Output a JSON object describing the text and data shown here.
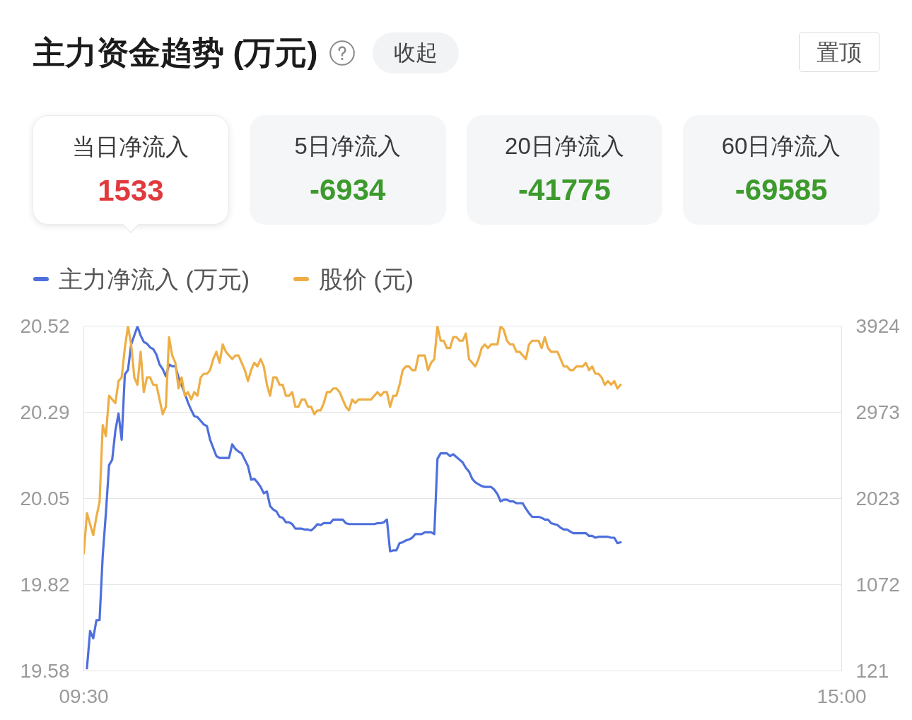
{
  "chart_data": [
    {
      "type": "other",
      "title": "主力资金趋势 (万元)",
      "annotations": [
        "收起",
        "置顶"
      ],
      "categories": [
        "当日净流入",
        "5日净流入",
        "20日净流入",
        "60日净流入"
      ],
      "values": [
        1533,
        -6934,
        -41775,
        -69585
      ],
      "data_labels": true
    },
    {
      "type": "line",
      "categories": [
        "09:30",
        null,
        null,
        null,
        null,
        null,
        null,
        null,
        null,
        null,
        null,
        null,
        null,
        null,
        null,
        null,
        null,
        null,
        null,
        null,
        null,
        null,
        null,
        null,
        null,
        null,
        null,
        null,
        null,
        null,
        null,
        null,
        null,
        null,
        null,
        null,
        null,
        null,
        null,
        null,
        null,
        null,
        null,
        null,
        null,
        null,
        null,
        null,
        null,
        null,
        null,
        null,
        null,
        null,
        null,
        null,
        null,
        null,
        null,
        null,
        null,
        null,
        null,
        null,
        null,
        null,
        null,
        null,
        null,
        null,
        null,
        null,
        null,
        null,
        null,
        null,
        null,
        null,
        null,
        null,
        null,
        null,
        null,
        null,
        null,
        null,
        null,
        null,
        null,
        null,
        null,
        null,
        null,
        null,
        null,
        null,
        null,
        null,
        null,
        null,
        null,
        null,
        null,
        null,
        null,
        null,
        null,
        null,
        null,
        null,
        null,
        null,
        null,
        null,
        null,
        null,
        null,
        null,
        null,
        null,
        null,
        null,
        null,
        null,
        null,
        null,
        null,
        null,
        null,
        null,
        null,
        null,
        null,
        null,
        null,
        null,
        null,
        null,
        null,
        null,
        null,
        null,
        null,
        null,
        null,
        null,
        null,
        null,
        null,
        null,
        null,
        null,
        null,
        null,
        null,
        null,
        null,
        null,
        null,
        null,
        null,
        null,
        null,
        null,
        null,
        null,
        null,
        null,
        null,
        null,
        null,
        null,
        null,
        null,
        null,
        null,
        null,
        null,
        null,
        null,
        null,
        null,
        null,
        null,
        null,
        null,
        null,
        null,
        null,
        null,
        null,
        null,
        null,
        null,
        null,
        null,
        null,
        null,
        null,
        null,
        null,
        null,
        null,
        null,
        null,
        null,
        null,
        null,
        null,
        null,
        null,
        null,
        null,
        null,
        null,
        null,
        null,
        null,
        null,
        null,
        null,
        null,
        null,
        null,
        null,
        null,
        null,
        null,
        null,
        null,
        null,
        null,
        null,
        null,
        null,
        null,
        null,
        null,
        null,
        null,
        "15:00"
      ],
      "ylim": [
        19.58,
        20.52
      ],
      "yticks": [
        19.58,
        {
          "value": 19.815,
          "label": "19.82"
        },
        20.05,
        {
          "value": 20.285,
          "label": "20.29"
        },
        20.52
      ],
      "y2lim": [
        121,
        3924
      ],
      "y2ticks": [
        121,
        {
          "value": 1071.75,
          "label": "1072"
        },
        {
          "value": 2022.5,
          "label": "2023"
        },
        {
          "value": 2973.25,
          "label": "2973"
        },
        3924
      ],
      "grid": "y",
      "legend": "top left",
      "line_style": "solid",
      "series": [
        {
          "name": "主力净流入 (万元)",
          "color": "#4e6fdc",
          "axis": "y2",
          "values": [
            null,
            150,
            560,
            480,
            680,
            680,
            1390,
            1860,
            2390,
            2450,
            2770,
            2960,
            2670,
            3390,
            3440,
            3720,
            3820,
            3920,
            3820,
            3750,
            3730,
            3690,
            3670,
            3610,
            3500,
            3450,
            3370,
            3500,
            3480,
            3480,
            3360,
            3270,
            3180,
            3080,
            3000,
            2930,
            2920,
            2880,
            2840,
            2820,
            2670,
            2580,
            2490,
            2470,
            2470,
            2470,
            2470,
            2620,
            2570,
            2540,
            2520,
            2450,
            2380,
            2230,
            2240,
            2200,
            2150,
            2080,
            2100,
            1940,
            1900,
            1880,
            1820,
            1810,
            1760,
            1760,
            1740,
            1690,
            1690,
            1690,
            1680,
            1680,
            1670,
            1700,
            1740,
            1730,
            1750,
            1750,
            1750,
            1790,
            1790,
            1790,
            1790,
            1750,
            1740,
            1740,
            1740,
            1740,
            1740,
            1740,
            1740,
            1740,
            1740,
            1750,
            1750,
            1760,
            1790,
            1440,
            1450,
            1450,
            1530,
            1540,
            1560,
            1570,
            1590,
            1630,
            1630,
            1630,
            1650,
            1650,
            1650,
            1630,
            2460,
            2520,
            2520,
            2520,
            2490,
            2510,
            2480,
            2450,
            2420,
            2360,
            2320,
            2240,
            2200,
            2180,
            2160,
            2150,
            2150,
            2150,
            2120,
            2070,
            1990,
            2010,
            2010,
            1990,
            1990,
            1970,
            1970,
            1970,
            1910,
            1860,
            1820,
            1820,
            1820,
            1810,
            1790,
            1790,
            1750,
            1740,
            1730,
            1700,
            1680,
            1680,
            1660,
            1640,
            1640,
            1640,
            1640,
            1640,
            1610,
            1610,
            1590,
            1600,
            1600,
            1600,
            1600,
            1590,
            1590,
            1530,
            1540,
            null,
            null,
            null,
            null,
            null,
            null,
            null,
            null,
            null,
            null,
            null,
            null,
            null,
            null,
            null,
            null,
            null,
            null,
            null,
            null,
            null,
            null,
            null,
            null,
            null,
            null,
            null,
            null,
            null,
            null,
            null,
            null,
            null,
            null,
            null,
            null,
            null,
            null,
            null,
            null,
            null,
            null,
            null,
            null,
            null,
            null,
            null,
            null,
            null,
            null,
            null,
            null,
            null,
            null,
            null,
            null,
            null,
            null,
            null,
            null,
            null,
            null,
            null,
            null,
            null,
            null,
            null,
            null,
            null,
            null
          ]
        },
        {
          "name": "股价 (元)",
          "color": "#eeae45",
          "values": [
            19.9,
            20.01,
            19.98,
            19.95,
            20.0,
            20.04,
            20.25,
            20.22,
            20.33,
            20.32,
            20.31,
            20.37,
            20.38,
            20.46,
            20.52,
            20.47,
            20.38,
            20.36,
            20.45,
            20.34,
            20.38,
            20.38,
            20.36,
            20.36,
            20.32,
            20.28,
            20.3,
            20.49,
            20.44,
            20.42,
            20.35,
            20.38,
            20.33,
            20.34,
            20.32,
            20.34,
            20.33,
            20.38,
            20.39,
            20.39,
            20.4,
            20.43,
            20.45,
            20.42,
            20.47,
            20.45,
            20.44,
            20.43,
            20.44,
            20.44,
            20.42,
            20.4,
            20.37,
            20.4,
            20.42,
            20.41,
            20.43,
            20.41,
            20.36,
            20.33,
            20.38,
            20.38,
            20.36,
            20.36,
            20.33,
            20.33,
            20.34,
            20.3,
            20.3,
            20.32,
            20.32,
            20.3,
            20.3,
            20.28,
            20.29,
            20.29,
            20.31,
            20.34,
            20.34,
            20.35,
            20.35,
            20.34,
            20.32,
            20.3,
            20.29,
            20.32,
            20.31,
            20.32,
            20.32,
            20.32,
            20.32,
            20.32,
            20.33,
            20.34,
            20.33,
            20.34,
            20.34,
            20.3,
            20.33,
            20.33,
            20.36,
            20.4,
            20.41,
            20.41,
            20.4,
            20.4,
            20.44,
            20.44,
            20.44,
            20.4,
            20.42,
            20.43,
            20.52,
            20.48,
            20.48,
            20.46,
            20.46,
            20.49,
            20.49,
            20.48,
            20.48,
            20.5,
            20.43,
            20.42,
            20.41,
            20.43,
            20.46,
            20.47,
            20.46,
            20.47,
            20.47,
            20.47,
            20.52,
            20.51,
            20.48,
            20.47,
            20.47,
            20.45,
            20.45,
            20.44,
            20.43,
            20.47,
            20.48,
            20.48,
            20.48,
            20.46,
            20.49,
            20.46,
            20.45,
            20.45,
            20.45,
            20.43,
            20.41,
            20.41,
            20.4,
            20.4,
            20.41,
            20.41,
            20.41,
            20.42,
            20.4,
            20.41,
            20.39,
            20.39,
            20.38,
            20.36,
            20.37,
            20.36,
            20.37,
            20.35,
            20.36,
            null,
            null,
            null,
            null,
            null,
            null,
            null,
            null,
            null,
            null,
            null,
            null,
            null,
            null,
            null,
            null,
            null,
            null,
            null,
            null,
            null,
            null,
            null,
            null,
            null,
            null,
            null,
            null,
            null,
            null,
            null,
            null,
            null,
            null,
            null,
            null,
            null,
            null,
            null,
            null,
            null,
            null,
            null,
            null,
            null,
            null,
            null,
            null,
            null,
            null,
            null,
            null,
            null,
            null,
            null,
            null,
            null,
            null,
            null,
            null,
            null,
            null,
            null,
            null,
            null,
            null,
            null,
            null,
            null,
            null
          ]
        }
      ]
    }
  ]
}
